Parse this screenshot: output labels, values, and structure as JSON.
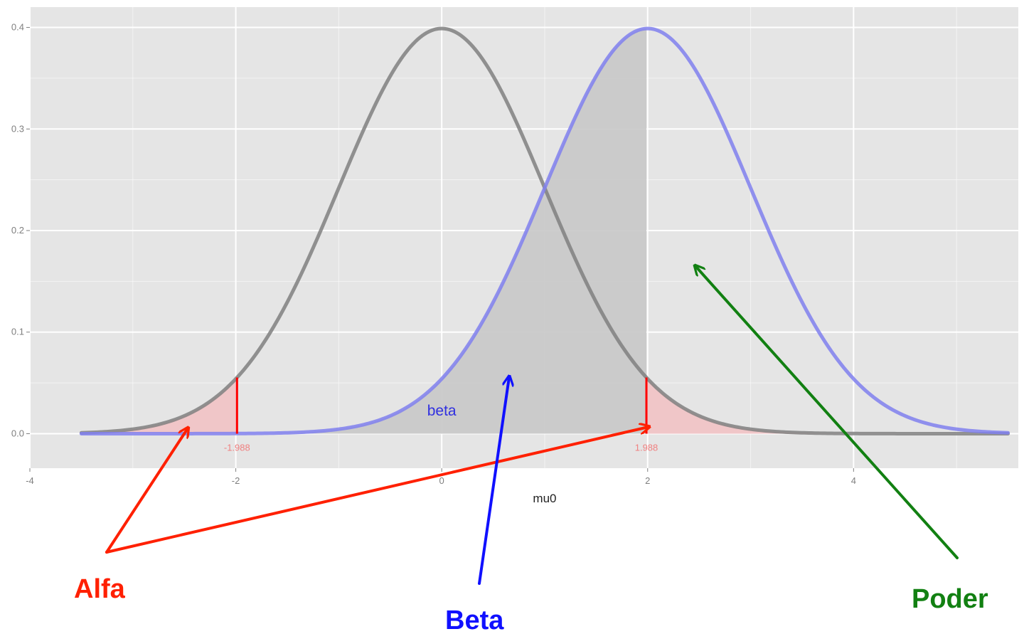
{
  "chart_data": {
    "type": "line",
    "title": "",
    "xlabel": "mu0",
    "ylabel": "",
    "xlim": [
      -4,
      5.6
    ],
    "ylim": [
      -0.034,
      0.42
    ],
    "x_ticks": [
      -4,
      -2,
      0,
      2,
      4
    ],
    "x_tick_labels": [
      "-4",
      "-2",
      "0",
      "2",
      "4"
    ],
    "y_ticks": [
      0.0,
      0.1,
      0.2,
      0.3,
      0.4
    ],
    "y_tick_labels": [
      "0.0",
      "0.1",
      "0.2",
      "0.3",
      "0.4"
    ],
    "grid": true,
    "x_range_drawn": [
      -3.5,
      5.5
    ],
    "series": [
      {
        "type": "normal_density",
        "mean": 0,
        "sd": 1,
        "color": "#808080"
      },
      {
        "type": "normal_density",
        "mean": 2,
        "sd": 1,
        "color": "#8080ee"
      }
    ],
    "critical_values": [
      -1.988,
      1.988
    ],
    "critical_labels": [
      "-1.988",
      "1.988"
    ],
    "annotations": [
      {
        "text": "beta",
        "x": 0,
        "y": 0.018,
        "color": "#3030e0"
      }
    ]
  },
  "callouts": [
    {
      "label": "Alfa",
      "color": "#ff2000"
    },
    {
      "label": "Beta",
      "color": "#1010ff"
    },
    {
      "label": "Poder",
      "color": "#128012"
    }
  ],
  "colors": {
    "panel_background": "#e5e5e5",
    "grid": "#ffffff",
    "alpha_fill": "#f0c6c8",
    "beta_fill": "#c8c8c8",
    "critical_line": "#ff0000"
  }
}
